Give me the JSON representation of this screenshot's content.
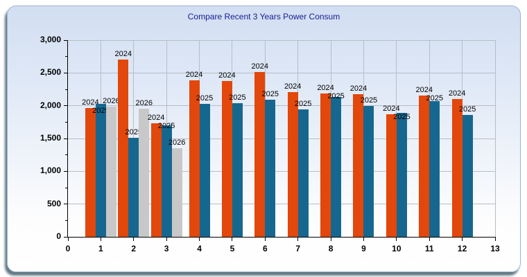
{
  "window": {
    "title": "Compare Recent 3 Years Power Consum"
  },
  "chart_data": {
    "type": "bar",
    "title": "Compare Recent 3 Years Power Consum",
    "xlabel": "",
    "ylabel": "",
    "xlim": [
      0,
      13
    ],
    "ylim": [
      0,
      3000
    ],
    "grid": true,
    "legend_position": "none",
    "x_tick_values": [
      0,
      1,
      2,
      3,
      4,
      5,
      6,
      7,
      8,
      9,
      10,
      11,
      12,
      13
    ],
    "x_tick_labels": [
      "0",
      "1",
      "2",
      "3",
      "4",
      "5",
      "6",
      "7",
      "8",
      "9",
      "10",
      "11",
      "12",
      "13"
    ],
    "y_tick_values": [
      0,
      500,
      1000,
      1500,
      2000,
      2500,
      3000
    ],
    "y_tick_labels": [
      "0",
      "500",
      "1,000",
      "1,500",
      "2,000",
      "2,500",
      "3,000"
    ],
    "y_minor_tick_values": [
      250,
      750,
      1250,
      1750,
      2250,
      2750
    ],
    "categories": [
      1,
      2,
      3,
      4,
      5,
      6,
      7,
      8,
      9,
      10,
      11,
      12
    ],
    "bar_labels_show_series_name": true,
    "series": [
      {
        "name": "2024",
        "color": "#e2470b",
        "values": [
          1970,
          2700,
          1730,
          2390,
          2380,
          2510,
          2210,
          2190,
          2180,
          1870,
          2160,
          2100
        ]
      },
      {
        "name": "2025",
        "color": "#16678f",
        "values": [
          2030,
          1510,
          1700,
          2030,
          2040,
          2090,
          1940,
          2130,
          2000,
          1890,
          2070,
          1860
        ]
      },
      {
        "name": "2026",
        "color": "#c8c8c8",
        "values": [
          1990,
          1950,
          1350,
          null,
          null,
          null,
          null,
          null,
          null,
          null,
          null,
          null
        ]
      }
    ]
  },
  "colors": {
    "title": "#141b94",
    "grid": "#b6bdc6",
    "axis": "#000000",
    "panel_border": "#9db4d0",
    "panel_gradient_top": "#d2def1",
    "panel_gradient_bottom": "#ffffff",
    "shadow": "#3a5864"
  }
}
